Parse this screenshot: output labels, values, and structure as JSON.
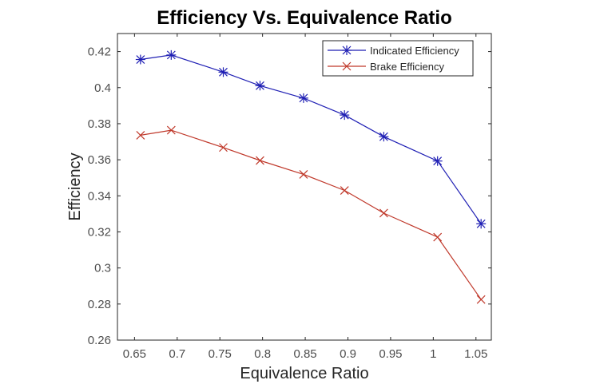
{
  "chart_data": {
    "type": "line",
    "title": "Efficiency Vs. Equivalence Ratio",
    "xlabel": "Equivalence Ratio",
    "ylabel": "Efficiency",
    "xlim": [
      0.63,
      1.068
    ],
    "ylim": [
      0.26,
      0.43
    ],
    "xticks": [
      0.65,
      0.7,
      0.75,
      0.8,
      0.85,
      0.9,
      0.95,
      1.0,
      1.05
    ],
    "xtick_labels": [
      "0.65",
      "0.7",
      "0.75",
      "0.8",
      "0.85",
      "0.9",
      "0.95",
      "1",
      "1.05"
    ],
    "yticks": [
      0.26,
      0.28,
      0.3,
      0.32,
      0.34,
      0.36,
      0.38,
      0.4,
      0.42
    ],
    "ytick_labels": [
      "0.26",
      "0.28",
      "0.3",
      "0.32",
      "0.34",
      "0.36",
      "0.38",
      "0.4",
      "0.42"
    ],
    "grid": false,
    "legend_position": "top-right",
    "x": [
      0.657,
      0.693,
      0.754,
      0.797,
      0.848,
      0.896,
      0.942,
      1.005,
      1.056
    ],
    "series": [
      {
        "name": "Indicated Efficiency",
        "color": "#1f1fb4",
        "marker": "asterisk",
        "values": [
          0.4156,
          0.4181,
          0.4086,
          0.4011,
          0.3942,
          0.3848,
          0.3728,
          0.3593,
          0.3245
        ]
      },
      {
        "name": "Brake Efficiency",
        "color": "#c0392b",
        "marker": "x",
        "values": [
          0.3736,
          0.3764,
          0.3668,
          0.3596,
          0.3519,
          0.343,
          0.3304,
          0.3171,
          0.2825
        ]
      }
    ]
  }
}
